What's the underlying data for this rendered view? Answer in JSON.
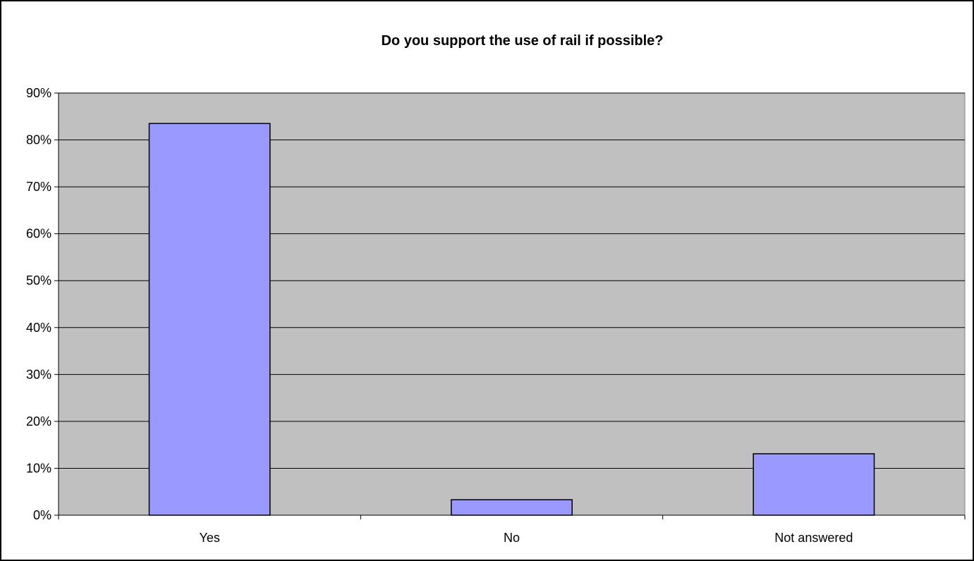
{
  "chart_data": {
    "type": "bar",
    "title": "Do you support the use of rail if possible?",
    "xlabel": "",
    "ylabel": "",
    "categories": [
      "Yes",
      "No",
      "Not answered"
    ],
    "values": [
      83.5,
      3.3,
      13.1
    ],
    "ylim": [
      0,
      90
    ],
    "yticks": [
      0,
      10,
      20,
      30,
      40,
      50,
      60,
      70,
      80,
      90
    ],
    "ytick_format": "percent",
    "grid": true,
    "legend": "none",
    "colors": {
      "bar_fill": "#9999ff",
      "bar_stroke": "#000000",
      "plot_background": "#c0c0c0",
      "grid_line": "#000000"
    }
  }
}
